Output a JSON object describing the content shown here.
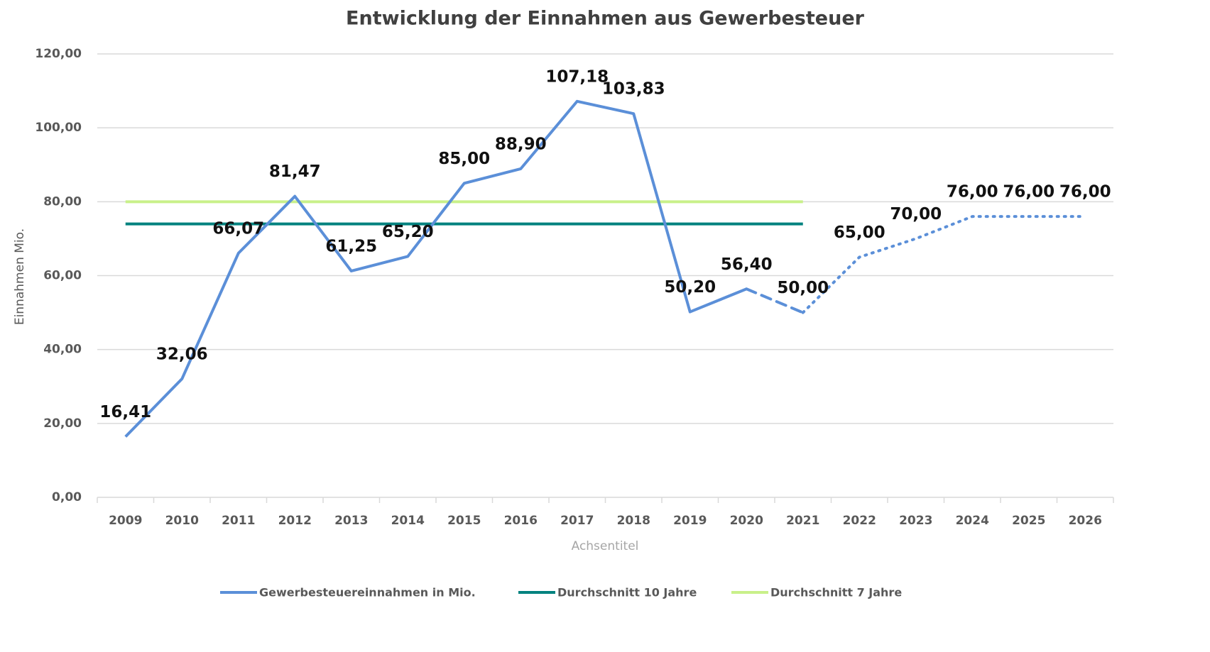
{
  "chart_data": {
    "type": "line",
    "title": "Entwicklung der Einnahmen aus Gewerbesteuer",
    "xlabel": "Achsentitel",
    "ylabel": "Einnahmen Mio.",
    "categories": [
      "2009",
      "2010",
      "2011",
      "2012",
      "2013",
      "2014",
      "2015",
      "2016",
      "2017",
      "2018",
      "2019",
      "2020",
      "2021",
      "2022",
      "2023",
      "2024",
      "2025",
      "2026"
    ],
    "series": [
      {
        "name": "Gewerbesteuereinnahmen in Mio.",
        "color": "#5b8fd8",
        "values": [
          16.41,
          32.06,
          66.07,
          81.47,
          61.25,
          65.2,
          85,
          88.9,
          107.18,
          103.83,
          50.2,
          56.4,
          50,
          65,
          70,
          76,
          76,
          76
        ],
        "value_labels": [
          "16,41",
          "32,06",
          "66,07",
          "81,47",
          "61,25",
          "65,20",
          "85,00",
          "88,90",
          "107,18",
          "103,83",
          "50,20",
          "56,40",
          "50,00",
          "65,00",
          "70,00",
          "76,00",
          "76,00",
          "76,00"
        ],
        "line_styles": [
          "solid",
          "solid",
          "solid",
          "solid",
          "solid",
          "solid",
          "solid",
          "solid",
          "solid",
          "solid",
          "solid",
          "dashed",
          "dotted",
          "dotted",
          "dotted",
          "dotted",
          "dotted"
        ]
      },
      {
        "name": "Durchschnitt 10 Jahre",
        "color": "#00827f",
        "values": [
          74,
          74,
          74,
          74,
          74,
          74,
          74,
          74,
          74,
          74,
          74,
          74,
          74,
          null,
          null,
          null,
          null,
          null
        ]
      },
      {
        "name": "Durchschnitt 7 Jahre",
        "color": "#c9f08a",
        "values": [
          80,
          80,
          80,
          80,
          80,
          80,
          80,
          80,
          80,
          80,
          80,
          80,
          80,
          null,
          null,
          null,
          null,
          null
        ]
      }
    ],
    "ylim": [
      0,
      120
    ],
    "yticks": [
      {
        "value": 0,
        "label": "0,00"
      },
      {
        "value": 20,
        "label": "20,00"
      },
      {
        "value": 40,
        "label": "40,00"
      },
      {
        "value": 60,
        "label": "60,00"
      },
      {
        "value": 80,
        "label": "80,00"
      },
      {
        "value": 100,
        "label": "100,00"
      },
      {
        "value": 120,
        "label": "120,00"
      }
    ],
    "grid": true,
    "legend": "bottom"
  }
}
